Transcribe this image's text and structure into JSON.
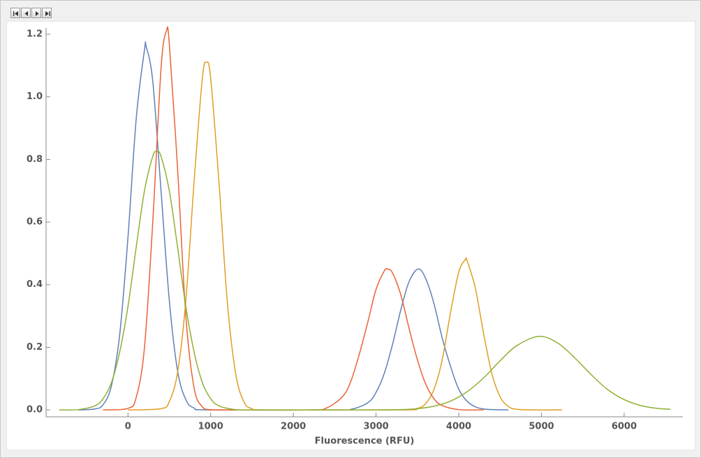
{
  "chart_data": {
    "type": "line",
    "x_label": "Fluorescence  (RFU)",
    "xlim": [
      -990,
      6710
    ],
    "ylim": [
      -0.022,
      1.22
    ],
    "xticks": [
      0,
      1000,
      2000,
      3000,
      4000,
      5000,
      6000
    ],
    "yticks": [
      {
        "value": 0,
        "label": "0.0"
      },
      0.2,
      0.4,
      0.6,
      0.8,
      {
        "value": 1,
        "label": "1.0"
      },
      1.2
    ],
    "series": [
      {
        "color": "#5e81b5",
        "x": [
          -600,
          -400,
          -300,
          -200,
          -100,
          0,
          100,
          200,
          220,
          300,
          400,
          500,
          600,
          700,
          800,
          1000,
          2500,
          2700,
          2900,
          3000,
          3100,
          3200,
          3300,
          3400,
          3510,
          3600,
          3700,
          3800,
          3900,
          4000,
          4100,
          4200,
          4300,
          4400,
          4600
        ],
        "values": [
          0,
          0.003,
          0.017,
          0.077,
          0.24,
          0.55,
          0.93,
          1.15,
          1.16,
          1.05,
          0.7,
          0.35,
          0.125,
          0.033,
          0.006,
          0,
          0,
          0.002,
          0.023,
          0.056,
          0.117,
          0.21,
          0.32,
          0.41,
          0.45,
          0.42,
          0.34,
          0.23,
          0.14,
          0.066,
          0.028,
          0.01,
          0.003,
          0.001,
          0
        ]
      },
      {
        "color": "#eb6235",
        "x": [
          -300,
          0,
          100,
          200,
          300,
          400,
          465,
          500,
          600,
          700,
          800,
          900,
          1000,
          1200,
          2200,
          2400,
          2600,
          2700,
          2800,
          2900,
          3000,
          3100,
          3140,
          3200,
          3300,
          3400,
          3500,
          3600,
          3700,
          3800,
          4000,
          4300
        ],
        "values": [
          0,
          0.005,
          0.04,
          0.2,
          0.6,
          1.09,
          1.21,
          1.17,
          0.77,
          0.3,
          0.07,
          0.01,
          0.001,
          0,
          0,
          0.006,
          0.044,
          0.095,
          0.18,
          0.28,
          0.385,
          0.444,
          0.45,
          0.437,
          0.367,
          0.26,
          0.16,
          0.083,
          0.036,
          0.014,
          0.001,
          0
        ]
      },
      {
        "color": "#e19c24",
        "x": [
          0,
          400,
          500,
          600,
          700,
          800,
          900,
          950,
          1000,
          1100,
          1200,
          1300,
          1400,
          1500,
          1700,
          3300,
          3500,
          3600,
          3700,
          3800,
          3900,
          4000,
          4080,
          4100,
          4200,
          4300,
          4400,
          4500,
          4600,
          4700,
          4900,
          5250
        ],
        "values": [
          0,
          0.004,
          0.027,
          0.12,
          0.35,
          0.73,
          1.06,
          1.11,
          1.06,
          0.73,
          0.35,
          0.12,
          0.027,
          0.004,
          0,
          0,
          0.005,
          0.02,
          0.065,
          0.16,
          0.31,
          0.44,
          0.48,
          0.477,
          0.39,
          0.245,
          0.117,
          0.042,
          0.011,
          0.002,
          0,
          0
        ]
      },
      {
        "color": "#8fb032",
        "x": [
          -830,
          -600,
          -400,
          -300,
          -200,
          -100,
          0,
          100,
          200,
          300,
          350,
          400,
          500,
          600,
          700,
          800,
          900,
          1000,
          1100,
          1300,
          1500,
          2500,
          3000,
          3300,
          3500,
          3700,
          3900,
          4100,
          4300,
          4500,
          4700,
          4970,
          5200,
          5400,
          5600,
          5800,
          6000,
          6200,
          6400,
          6560
        ],
        "values": [
          0,
          0.001,
          0.013,
          0.036,
          0.087,
          0.185,
          0.33,
          0.52,
          0.7,
          0.81,
          0.825,
          0.81,
          0.7,
          0.52,
          0.33,
          0.185,
          0.087,
          0.036,
          0.013,
          0.001,
          0,
          0,
          0,
          0.001,
          0.004,
          0.012,
          0.028,
          0.058,
          0.102,
          0.157,
          0.205,
          0.235,
          0.213,
          0.167,
          0.113,
          0.065,
          0.033,
          0.014,
          0.005,
          0.002
        ]
      }
    ]
  }
}
